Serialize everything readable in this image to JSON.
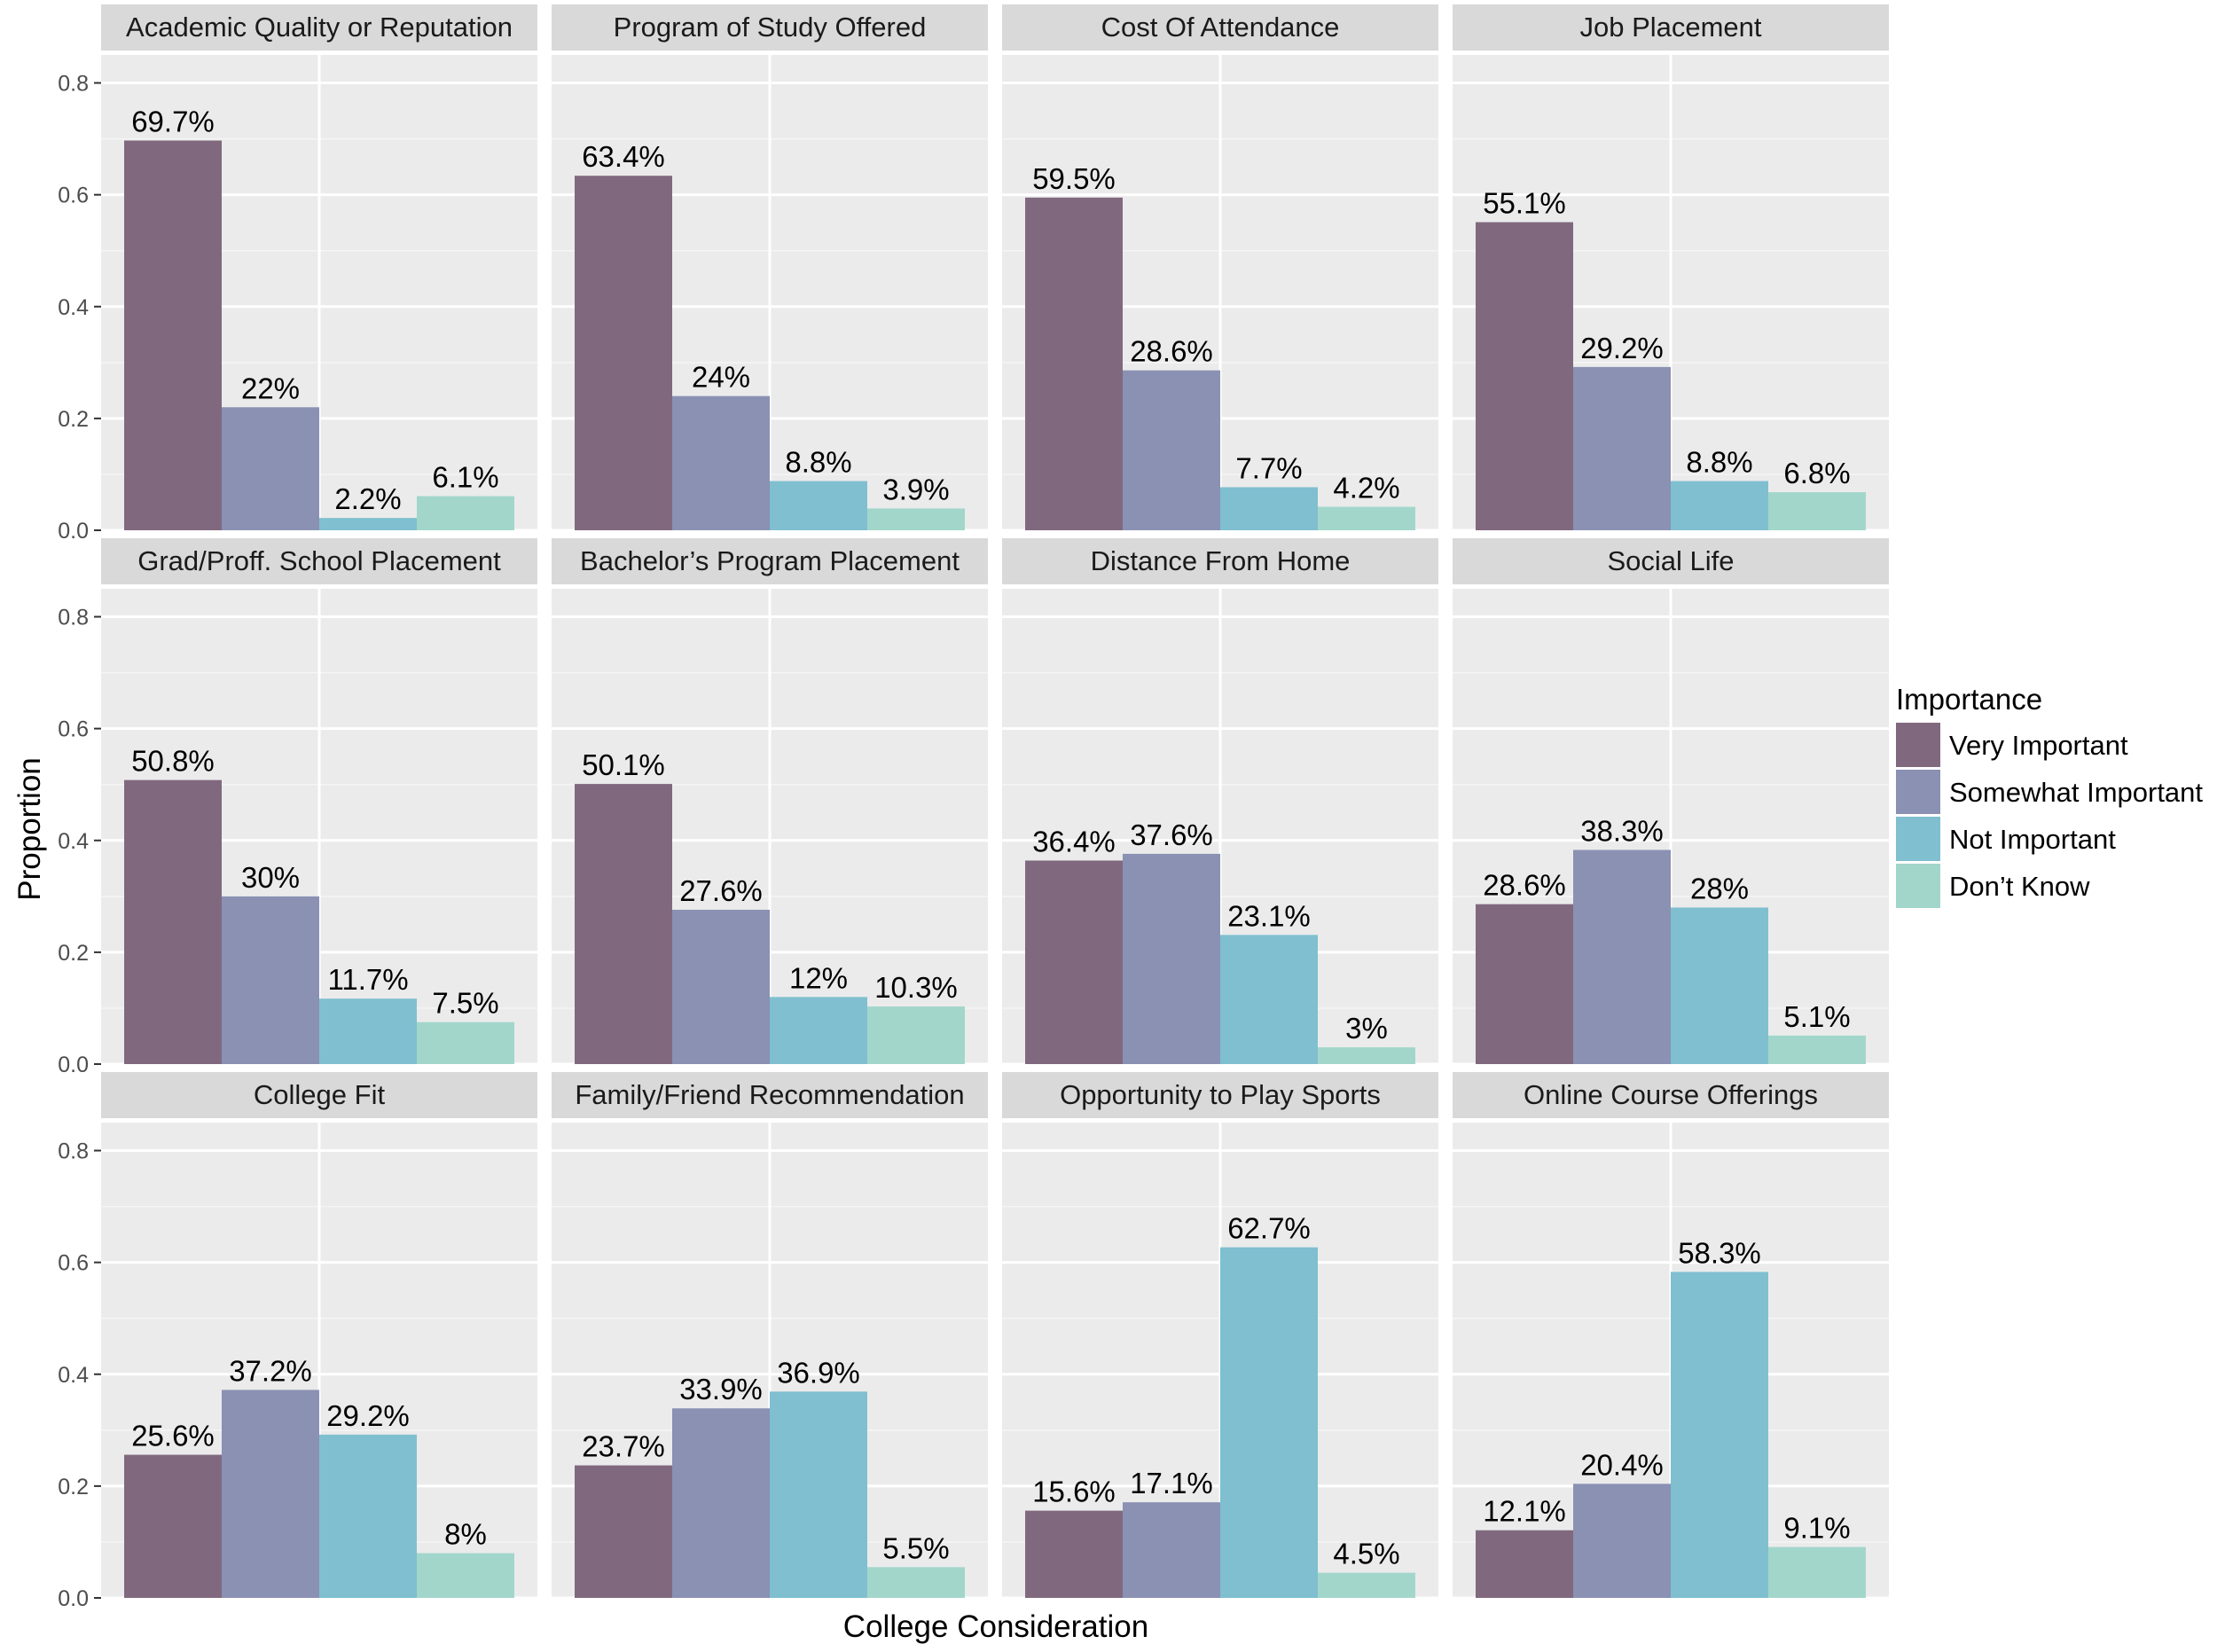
{
  "chart_data": {
    "type": "bar",
    "xlabel": "College Consideration",
    "ylabel": "Proportion",
    "ylim": [
      0,
      0.85
    ],
    "y_ticks": [
      0.0,
      0.2,
      0.4,
      0.6,
      0.8
    ],
    "y_tick_labels": [
      "0.0",
      "0.2",
      "0.4",
      "0.6",
      "0.8"
    ],
    "grid": true,
    "legend_position": "right",
    "legend": {
      "title": "Importance",
      "entries": [
        "Very Important",
        "Somewhat Important",
        "Not Important",
        "Don’t Know"
      ]
    },
    "colors": [
      "#80697f",
      "#8a91b3",
      "#7fbfd0",
      "#a2d6cb"
    ],
    "series_names": [
      "Very Important",
      "Somewhat Important",
      "Not Important",
      "Don’t Know"
    ],
    "panels": [
      {
        "title": "Academic Quality or Reputation",
        "values": [
          0.697,
          0.22,
          0.022,
          0.061
        ],
        "labels": [
          "69.7%",
          "22%",
          "2.2%",
          "6.1%"
        ]
      },
      {
        "title": "Program of Study Offered",
        "values": [
          0.634,
          0.24,
          0.088,
          0.039
        ],
        "labels": [
          "63.4%",
          "24%",
          "8.8%",
          "3.9%"
        ]
      },
      {
        "title": "Cost Of Attendance",
        "values": [
          0.595,
          0.286,
          0.077,
          0.042
        ],
        "labels": [
          "59.5%",
          "28.6%",
          "7.7%",
          "4.2%"
        ]
      },
      {
        "title": "Job Placement",
        "values": [
          0.551,
          0.292,
          0.088,
          0.068
        ],
        "labels": [
          "55.1%",
          "29.2%",
          "8.8%",
          "6.8%"
        ]
      },
      {
        "title": "Grad/Proff. School Placement",
        "values": [
          0.508,
          0.3,
          0.117,
          0.075
        ],
        "labels": [
          "50.8%",
          "30%",
          "11.7%",
          "7.5%"
        ]
      },
      {
        "title": "Bachelor’s Program Placement",
        "values": [
          0.501,
          0.276,
          0.12,
          0.103
        ],
        "labels": [
          "50.1%",
          "27.6%",
          "12%",
          "10.3%"
        ]
      },
      {
        "title": "Distance From Home",
        "values": [
          0.364,
          0.376,
          0.231,
          0.03
        ],
        "labels": [
          "36.4%",
          "37.6%",
          "23.1%",
          "3%"
        ]
      },
      {
        "title": "Social Life",
        "values": [
          0.286,
          0.383,
          0.28,
          0.051
        ],
        "labels": [
          "28.6%",
          "38.3%",
          "28%",
          "5.1%"
        ]
      },
      {
        "title": "College Fit",
        "values": [
          0.256,
          0.372,
          0.292,
          0.08
        ],
        "labels": [
          "25.6%",
          "37.2%",
          "29.2%",
          "8%"
        ]
      },
      {
        "title": "Family/Friend Recommendation",
        "values": [
          0.237,
          0.339,
          0.369,
          0.055
        ],
        "labels": [
          "23.7%",
          "33.9%",
          "36.9%",
          "5.5%"
        ]
      },
      {
        "title": "Opportunity to Play Sports",
        "values": [
          0.156,
          0.171,
          0.627,
          0.045
        ],
        "labels": [
          "15.6%",
          "17.1%",
          "62.7%",
          "4.5%"
        ]
      },
      {
        "title": "Online Course Offerings",
        "values": [
          0.121,
          0.204,
          0.583,
          0.091
        ],
        "labels": [
          "12.1%",
          "20.4%",
          "58.3%",
          "9.1%"
        ]
      }
    ]
  }
}
